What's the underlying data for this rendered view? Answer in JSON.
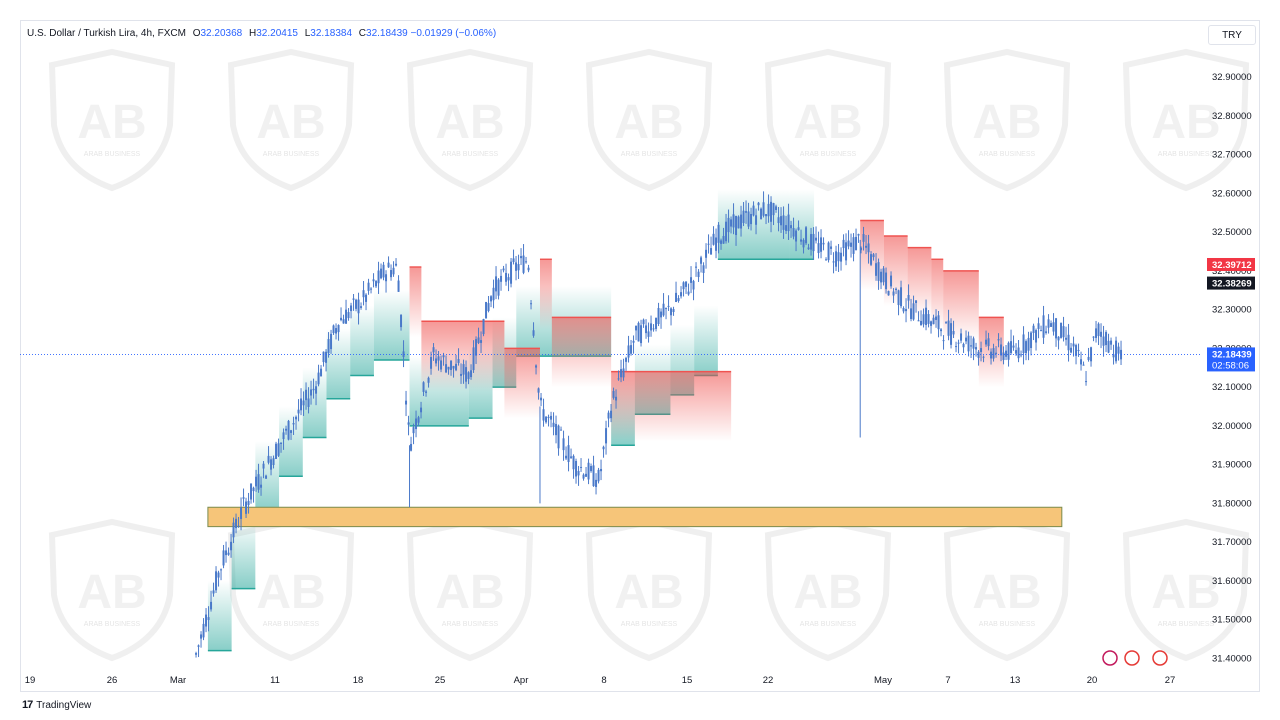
{
  "legend": {
    "symbol": "U.S. Dollar / Turkish Lira, 4h, FXCM",
    "o_label": "O",
    "o_value": "32.20368",
    "h_label": "H",
    "h_value": "32.20415",
    "l_label": "L",
    "l_value": "32.18384",
    "c_label": "C",
    "c_value": "32.18439",
    "change": "−0.01929 (−0.06%)"
  },
  "currency_button": "TRY",
  "footer": {
    "logo_glyph": "17",
    "brand": "TradingView"
  },
  "watermark": {
    "text": "ARAB BUSINESS"
  },
  "colors": {
    "candle": "#4a79c9",
    "support_fill": "#26a69a",
    "resistance_fill": "#ef5350",
    "zone_fill": "#f6c579",
    "zone_stroke": "#7a8b4e",
    "badge_red": "#f23645",
    "badge_black": "#131722",
    "badge_blue": "#2962ff"
  },
  "chart_data": {
    "type": "candlestick",
    "ylim": [
      31.37,
      32.97
    ],
    "y_ticks": [
      "32.90000",
      "32.80000",
      "32.70000",
      "32.60000",
      "32.50000",
      "32.40000",
      "32.30000",
      "32.20000",
      "32.10000",
      "32.00000",
      "31.90000",
      "31.80000",
      "31.70000",
      "31.60000",
      "31.50000",
      "31.40000"
    ],
    "x_ticks": [
      "19",
      "26",
      "Mar",
      "11",
      "18",
      "25",
      "Apr",
      "8",
      "15",
      "22",
      "May",
      "7",
      "13",
      "20",
      "27"
    ],
    "price_badges": [
      {
        "value": "32.39712",
        "color": "red"
      },
      {
        "value": "32.38269",
        "color": "black"
      },
      {
        "value": "32.18439",
        "color": "blue",
        "countdown": "02:58:06"
      }
    ],
    "current_price": 32.18439,
    "zone": {
      "low": 31.74,
      "high": 31.79,
      "start_x": "Mar 5",
      "end_x": "May 16"
    },
    "path": [
      [
        "Mar 4",
        31.41
      ],
      [
        "Mar 6",
        31.63
      ],
      [
        "Mar 8",
        31.79
      ],
      [
        "Mar 11",
        31.95
      ],
      [
        "Mar 14",
        32.1
      ],
      [
        "Mar 16",
        32.27
      ],
      [
        "Mar 18",
        32.32
      ],
      [
        "Mar 20",
        32.4
      ],
      [
        "Mar 21",
        32.41
      ],
      [
        "Mar 22",
        31.95
      ],
      [
        "Mar 24",
        32.18
      ],
      [
        "Mar 27",
        32.13
      ],
      [
        "Mar 29",
        32.35
      ],
      [
        "Mar 31",
        32.41
      ],
      [
        "Apr 1",
        32.43
      ],
      [
        "Apr 2",
        32.05
      ],
      [
        "Apr 5",
        31.9
      ],
      [
        "Apr 7",
        31.86
      ],
      [
        "Apr 8",
        32.05
      ],
      [
        "Apr 10",
        32.23
      ],
      [
        "Apr 13",
        32.3
      ],
      [
        "Apr 15",
        32.38
      ],
      [
        "Apr 17",
        32.49
      ],
      [
        "Apr 19",
        32.53
      ],
      [
        "Apr 21",
        32.56
      ],
      [
        "Apr 23",
        32.52
      ],
      [
        "Apr 25",
        32.47
      ],
      [
        "Apr 27",
        32.44
      ],
      [
        "Apr 29",
        32.48
      ],
      [
        "May 1",
        32.38
      ],
      [
        "May 3",
        32.31
      ],
      [
        "May 6",
        32.25
      ],
      [
        "May 9",
        32.2
      ],
      [
        "May 12",
        32.19
      ],
      [
        "May 15",
        32.27
      ],
      [
        "May 17",
        32.2
      ],
      [
        "May 18",
        32.13
      ],
      [
        "May 19",
        32.25
      ],
      [
        "May 21",
        32.18
      ]
    ],
    "support_steps": [
      [
        "Mar 5",
        31.42
      ],
      [
        "Mar 7",
        31.58
      ],
      [
        "Mar 9",
        31.78
      ],
      [
        "Mar 11",
        31.87
      ],
      [
        "Mar 13",
        31.97
      ],
      [
        "Mar 15",
        32.07
      ],
      [
        "Mar 17",
        32.13
      ],
      [
        "Mar 19",
        32.17
      ],
      [
        "Mar 22",
        32.0
      ],
      [
        "Mar 27",
        32.02
      ],
      [
        "Mar 29",
        32.1
      ],
      [
        "Mar 31",
        32.18
      ],
      [
        "Apr 8",
        31.95
      ],
      [
        "Apr 10",
        32.03
      ],
      [
        "Apr 13",
        32.08
      ],
      [
        "Apr 15",
        32.13
      ],
      [
        "Apr 17",
        32.43
      ],
      [
        "Apr 23",
        32.43
      ]
    ],
    "resistance_steps": [
      [
        "Mar 22",
        32.41
      ],
      [
        "Mar 23",
        32.27
      ],
      [
        "Mar 30",
        32.2
      ],
      [
        "Apr 2",
        32.43
      ],
      [
        "Apr 3",
        32.28
      ],
      [
        "Apr 8",
        32.14
      ],
      [
        "Apr 29",
        32.53
      ],
      [
        "May 1",
        32.49
      ],
      [
        "May 3",
        32.46
      ],
      [
        "May 5",
        32.43
      ],
      [
        "May 6",
        32.4
      ],
      [
        "May 9",
        32.28
      ]
    ],
    "spikes": [
      [
        "Mar 22",
        31.79
      ],
      [
        "Apr 2",
        31.8
      ],
      [
        "Apr 29",
        31.97
      ]
    ]
  }
}
